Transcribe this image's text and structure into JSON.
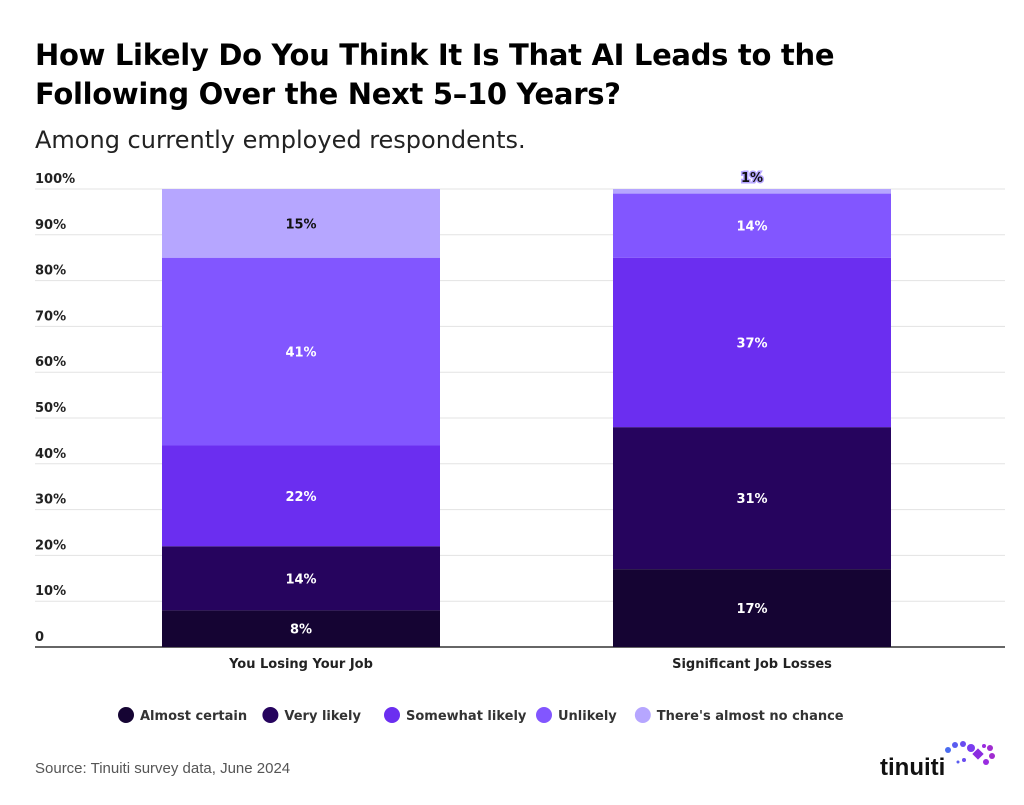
{
  "chart_data": {
    "type": "bar",
    "stacked": true,
    "title": "How Likely Do You Think It Is That AI Leads to the Following Over the Next 5–10 Years?",
    "subtitle": "Among currently employed respondents.",
    "categories": [
      "You Losing Your Job",
      "Significant Job Losses"
    ],
    "series": [
      {
        "name": "Almost certain",
        "values": [
          8,
          17
        ],
        "color": "#150433",
        "label_color": "#ffffff"
      },
      {
        "name": "Very likely",
        "values": [
          14,
          31
        ],
        "color": "#26045e",
        "label_color": "#ffffff"
      },
      {
        "name": "Somewhat likely",
        "values": [
          22,
          37
        ],
        "color": "#6b2ef0",
        "label_color": "#ffffff"
      },
      {
        "name": "Unlikely",
        "values": [
          41,
          14
        ],
        "color": "#8256ff",
        "label_color": "#ffffff"
      },
      {
        "name": "There's almost no chance",
        "values": [
          15,
          1
        ],
        "color": "#b6a6ff",
        "label_color": "#111111"
      }
    ],
    "ylim": [
      0,
      100
    ],
    "y_ticks": [
      "0",
      "10%",
      "20%",
      "30%",
      "40%",
      "50%",
      "60%",
      "70%",
      "80%",
      "90%",
      "100%"
    ],
    "grid": true,
    "legend_position": "bottom"
  },
  "footer": {
    "source": "Source: Tinuiti survey data, June 2024",
    "logo": "tinuiti"
  }
}
